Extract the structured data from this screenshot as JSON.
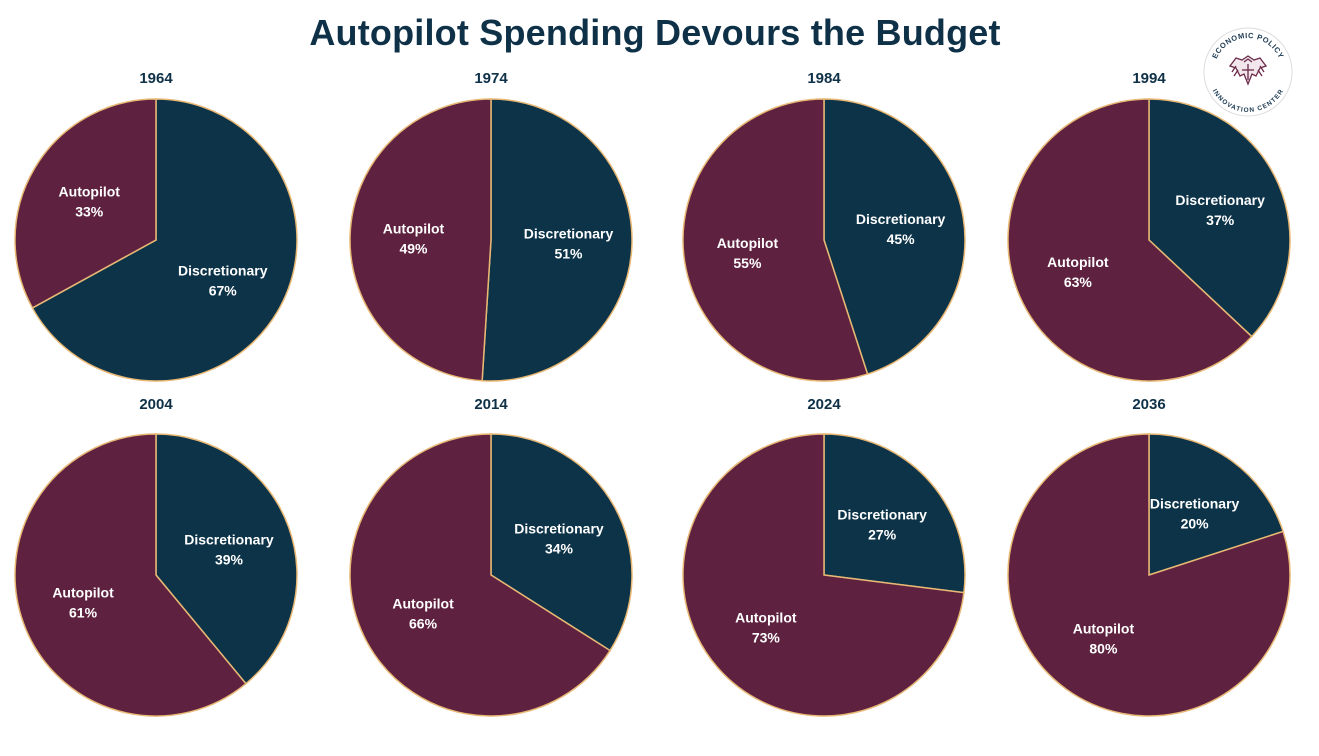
{
  "title": "Autopilot Spending Devours the Budget",
  "logo": {
    "text_top": "ECONOMIC POLICY",
    "text_bottom": "INNOVATION CENTER",
    "icon": "eagle-icon"
  },
  "colors": {
    "autopilot": "#5e2240",
    "discretionary": "#0d3349",
    "border": "#e8b874",
    "label": "#ffffff",
    "year_label": "#0f3148",
    "logo": "#6a2a48"
  },
  "chart_data": [
    {
      "type": "pie",
      "title": "1964",
      "slices": [
        {
          "label": "Autopilot",
          "value": 33,
          "display": "33%"
        },
        {
          "label": "Discretionary",
          "value": 67,
          "display": "67%"
        }
      ]
    },
    {
      "type": "pie",
      "title": "1974",
      "slices": [
        {
          "label": "Autopilot",
          "value": 49,
          "display": "49%"
        },
        {
          "label": "Discretionary",
          "value": 51,
          "display": "51%"
        }
      ]
    },
    {
      "type": "pie",
      "title": "1984",
      "slices": [
        {
          "label": "Autopilot",
          "value": 55,
          "display": "55%"
        },
        {
          "label": "Discretionary",
          "value": 45,
          "display": "45%"
        }
      ]
    },
    {
      "type": "pie",
      "title": "1994",
      "slices": [
        {
          "label": "Autopilot",
          "value": 63,
          "display": "63%"
        },
        {
          "label": "Discretionary",
          "value": 37,
          "display": "37%"
        }
      ]
    },
    {
      "type": "pie",
      "title": "2004",
      "slices": [
        {
          "label": "Autopilot",
          "value": 61,
          "display": "61%"
        },
        {
          "label": "Discretionary",
          "value": 39,
          "display": "39%"
        }
      ]
    },
    {
      "type": "pie",
      "title": "2014",
      "slices": [
        {
          "label": "Autopilot",
          "value": 66,
          "display": "66%"
        },
        {
          "label": "Discretionary",
          "value": 34,
          "display": "34%"
        }
      ]
    },
    {
      "type": "pie",
      "title": "2024",
      "slices": [
        {
          "label": "Autopilot",
          "value": 73,
          "display": "73%"
        },
        {
          "label": "Discretionary",
          "value": 27,
          "display": "27%"
        }
      ]
    },
    {
      "type": "pie",
      "title": "2036",
      "slices": [
        {
          "label": "Autopilot",
          "value": 80,
          "display": "80%"
        },
        {
          "label": "Discretionary",
          "value": 20,
          "display": "20%"
        }
      ]
    }
  ]
}
